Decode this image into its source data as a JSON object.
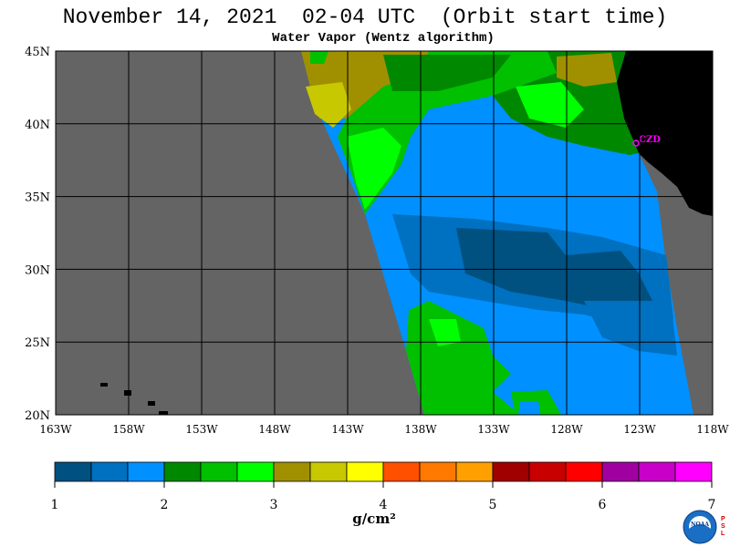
{
  "header": {
    "title": "November 14, 2021  02-04 UTC  (Orbit start time)",
    "subtitle": "Water Vapor (Wentz algorithm)"
  },
  "map": {
    "lat_labels": [
      "45N",
      "40N",
      "35N",
      "30N",
      "25N",
      "20N"
    ],
    "lon_labels": [
      "163W",
      "158W",
      "153W",
      "148W",
      "143W",
      "138W",
      "133W",
      "128W",
      "123W",
      "118W"
    ],
    "station_label": "CZD",
    "colors": {
      "no_data": "#646464",
      "land": "#000000",
      "station": "#ff00ff"
    }
  },
  "colorbar": {
    "tick_labels": [
      "1",
      "2",
      "3",
      "4",
      "5",
      "6",
      "7"
    ],
    "units": "g/cm²",
    "colors": [
      "#005080",
      "#0070c0",
      "#0090ff",
      "#008800",
      "#00c000",
      "#00ff00",
      "#a09000",
      "#c8c800",
      "#ffff00",
      "#ff5000",
      "#ff7800",
      "#ffa000",
      "#a00000",
      "#c80000",
      "#ff0000",
      "#a000a0",
      "#c800c8",
      "#ff00ff"
    ]
  },
  "logo": {
    "name": "NOAA",
    "side_text": "PSL"
  }
}
